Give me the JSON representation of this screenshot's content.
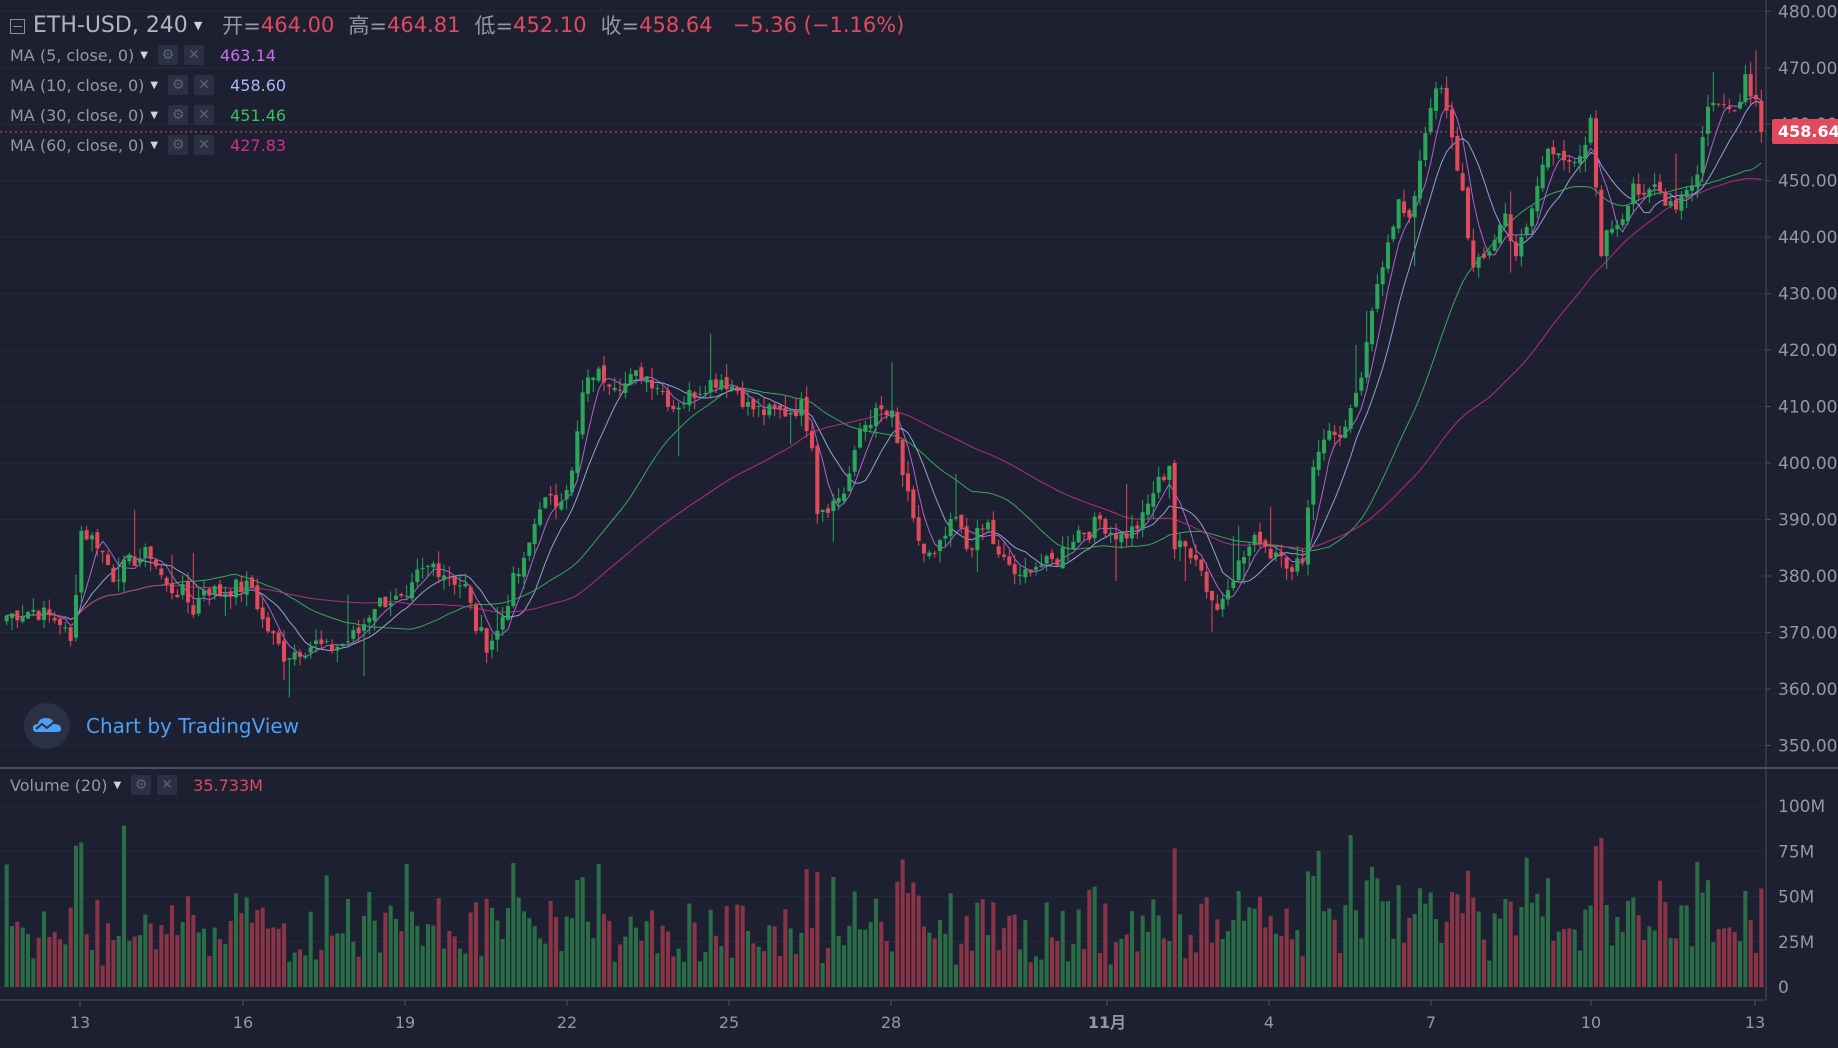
{
  "header": {
    "symbol": "ETH-USD, 240",
    "open_label": "开=",
    "open": "464.00",
    "high_label": "高=",
    "high": "464.81",
    "low_label": "低=",
    "low": "452.10",
    "close_label": "收=",
    "close": "458.64",
    "change": "−5.36 (−1.16%)"
  },
  "ma_legend": [
    {
      "title": "MA (5, close, 0)",
      "value": "463.14",
      "color": "#c86ff0"
    },
    {
      "title": "MA (10, close, 0)",
      "value": "458.60",
      "color": "#a9b7f5"
    },
    {
      "title": "MA (30, close, 0)",
      "value": "451.46",
      "color": "#3dbf5f"
    },
    {
      "title": "MA (60, close, 0)",
      "value": "427.83",
      "color": "#d0308a"
    }
  ],
  "volume_legend": {
    "title": "Volume (20)",
    "value": "35.733M"
  },
  "price_badge": "458.64",
  "brand": "Chart by TradingView",
  "colors": {
    "up": "#2aa55a",
    "down": "#e04a5c",
    "background": "#1c2030",
    "grid": "#262b3b"
  },
  "icons": [
    "collapse-icon",
    "caret-down-icon",
    "gear-icon",
    "close-icon",
    "tradingview-cloud-icon"
  ],
  "chart_data": {
    "type": "candlestick",
    "price_axis": {
      "ticks": [
        "480.00",
        "470.00",
        "460.00",
        "450.00",
        "440.00",
        "430.00",
        "420.00",
        "410.00",
        "400.00",
        "390.00",
        "380.00",
        "370.00",
        "360.00",
        "350.00"
      ],
      "range": [
        346,
        482
      ]
    },
    "volume_axis": {
      "ticks": [
        "100M",
        "75M",
        "50M",
        "25M",
        "0"
      ],
      "range": [
        0,
        120
      ]
    },
    "time_axis": {
      "labels": [
        "13",
        "16",
        "19",
        "22",
        "25",
        "28",
        "11月",
        "4",
        "7",
        "10",
        "13"
      ]
    },
    "price_anchors": [
      [
        0,
        373
      ],
      [
        5,
        374
      ],
      [
        10,
        372
      ],
      [
        12,
        368
      ],
      [
        14,
        388
      ],
      [
        17,
        386
      ],
      [
        20,
        380
      ],
      [
        24,
        383
      ],
      [
        27,
        384
      ],
      [
        30,
        378
      ],
      [
        33,
        377
      ],
      [
        35,
        374
      ],
      [
        37,
        378
      ],
      [
        40,
        377
      ],
      [
        43,
        378
      ],
      [
        46,
        378
      ],
      [
        48,
        372
      ],
      [
        50,
        369
      ],
      [
        52,
        366
      ],
      [
        55,
        367
      ],
      [
        58,
        368
      ],
      [
        60,
        367
      ],
      [
        63,
        368
      ],
      [
        66,
        370
      ],
      [
        69,
        375
      ],
      [
        72,
        376
      ],
      [
        75,
        375
      ],
      [
        77,
        380
      ],
      [
        80,
        382
      ],
      [
        83,
        380
      ],
      [
        86,
        378
      ],
      [
        88,
        371
      ],
      [
        90,
        368
      ],
      [
        92,
        370
      ],
      [
        95,
        379
      ],
      [
        97,
        382
      ],
      [
        100,
        393
      ],
      [
        103,
        393
      ],
      [
        106,
        398
      ],
      [
        108,
        412
      ],
      [
        110,
        416
      ],
      [
        113,
        415
      ],
      [
        116,
        414
      ],
      [
        119,
        416
      ],
      [
        122,
        414
      ],
      [
        125,
        410
      ],
      [
        128,
        412
      ],
      [
        131,
        414
      ],
      [
        134,
        415
      ],
      [
        137,
        413
      ],
      [
        139,
        410
      ],
      [
        142,
        409
      ],
      [
        146,
        409
      ],
      [
        149,
        410
      ],
      [
        151,
        404
      ],
      [
        152,
        392
      ],
      [
        155,
        393
      ],
      [
        157,
        395
      ],
      [
        159,
        401
      ],
      [
        160,
        406
      ],
      [
        162,
        408
      ],
      [
        164,
        409
      ],
      [
        166,
        408
      ],
      [
        168,
        398
      ],
      [
        170,
        389
      ],
      [
        172,
        384
      ],
      [
        174,
        383
      ],
      [
        176,
        387
      ],
      [
        178,
        390
      ],
      [
        180,
        385
      ],
      [
        182,
        387
      ],
      [
        184,
        389
      ],
      [
        186,
        383
      ],
      [
        188,
        382
      ],
      [
        190,
        379
      ],
      [
        192,
        382
      ],
      [
        195,
        382
      ],
      [
        197,
        383
      ],
      [
        199,
        386
      ],
      [
        201,
        388
      ],
      [
        203,
        388
      ],
      [
        205,
        390
      ],
      [
        207,
        388
      ],
      [
        209,
        387
      ],
      [
        211,
        388
      ],
      [
        213,
        390
      ],
      [
        215,
        395
      ],
      [
        217,
        398
      ],
      [
        218,
        400
      ],
      [
        219,
        385
      ],
      [
        221,
        385
      ],
      [
        223,
        384
      ],
      [
        225,
        378
      ],
      [
        227,
        374
      ],
      [
        229,
        379
      ],
      [
        231,
        382
      ],
      [
        233,
        385
      ],
      [
        235,
        387
      ],
      [
        237,
        384
      ],
      [
        239,
        385
      ],
      [
        241,
        380
      ],
      [
        243,
        384
      ],
      [
        245,
        400
      ],
      [
        247,
        405
      ],
      [
        249,
        405
      ],
      [
        251,
        406
      ],
      [
        253,
        411
      ],
      [
        255,
        420
      ],
      [
        257,
        432
      ],
      [
        259,
        440
      ],
      [
        261,
        446
      ],
      [
        263,
        442
      ],
      [
        265,
        454
      ],
      [
        267,
        464
      ],
      [
        269,
        466
      ],
      [
        271,
        457
      ],
      [
        273,
        448
      ],
      [
        275,
        434
      ],
      [
        277,
        436
      ],
      [
        279,
        440
      ],
      [
        281,
        444
      ],
      [
        283,
        437
      ],
      [
        285,
        441
      ],
      [
        287,
        449
      ],
      [
        289,
        456
      ],
      [
        291,
        456
      ],
      [
        293,
        452
      ],
      [
        295,
        453
      ],
      [
        297,
        460
      ],
      [
        299,
        438
      ],
      [
        301,
        442
      ],
      [
        303,
        444
      ],
      [
        305,
        450
      ],
      [
        307,
        446
      ],
      [
        309,
        449
      ],
      [
        311,
        447
      ],
      [
        313,
        446
      ],
      [
        315,
        449
      ],
      [
        317,
        451
      ],
      [
        319,
        464
      ],
      [
        321,
        463
      ],
      [
        323,
        464
      ],
      [
        325,
        464
      ],
      [
        326,
        469
      ],
      [
        328,
        464
      ],
      [
        329,
        458.64
      ]
    ],
    "last_close": 458.64
  }
}
